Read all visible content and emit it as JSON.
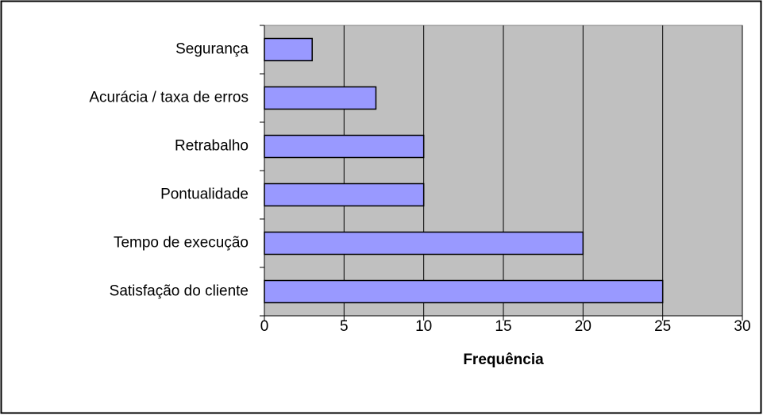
{
  "chart_data": {
    "type": "bar",
    "orientation": "horizontal",
    "categories": [
      "Segurança",
      "Acurácia / taxa de erros",
      "Retrabalho",
      "Pontualidade",
      "Tempo de execução",
      "Satisfação do cliente"
    ],
    "values": [
      3,
      7,
      10,
      10,
      20,
      25
    ],
    "color": "#9999ff",
    "xlabel": "Frequência",
    "xlim": [
      0,
      30
    ],
    "xticks": [
      0,
      5,
      10,
      15,
      20,
      25,
      30
    ],
    "grid": true
  }
}
